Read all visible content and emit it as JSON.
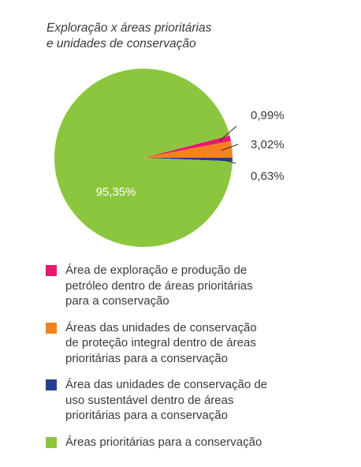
{
  "chart_data": {
    "type": "pie",
    "title": "Exploração x áreas prioritárias e unidades de conservação",
    "title_lines": [
      "Exploração x áreas prioritárias",
      "e unidades de conservação"
    ],
    "slices": [
      {
        "label_lines": [
          "Área de exploração e produção de",
          "petróleo dentro de áreas prioritárias",
          "para a conservação"
        ],
        "value": 0.99,
        "value_label": "0,99%",
        "color": "#e8186e"
      },
      {
        "label_lines": [
          "Áreas das unidades de conservação",
          "de proteção integral dentro de áreas",
          "prioritárias para a conservação"
        ],
        "value": 3.02,
        "value_label": "3,02%",
        "color": "#f5821f"
      },
      {
        "label_lines": [
          "Área das unidades de conservação de",
          "uso sustentável dentro de áreas",
          "prioritárias para a conservação"
        ],
        "value": 0.63,
        "value_label": "0,63%",
        "color": "#253f8e"
      },
      {
        "label_lines": [
          "Áreas prioritárias para a conservação"
        ],
        "value": 95.35,
        "value_label": "95,35%",
        "color": "#8cc63f"
      }
    ],
    "legend_position": "bottom"
  }
}
